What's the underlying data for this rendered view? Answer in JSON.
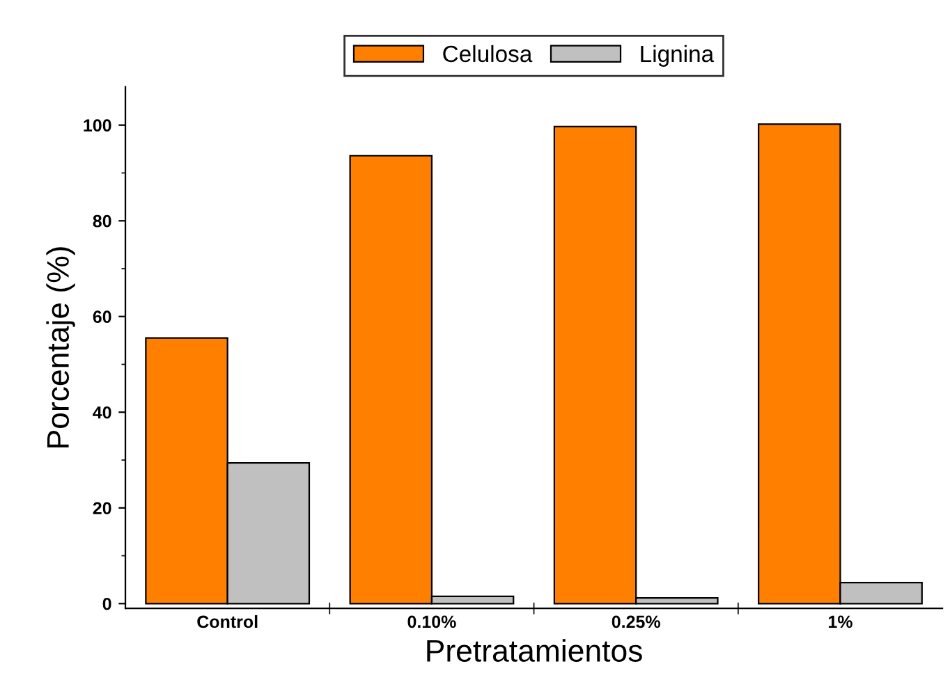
{
  "chart_data": {
    "type": "bar",
    "xlabel": "Pretratamientos",
    "ylabel": "Porcentaje (%)",
    "categories": [
      "Control",
      "0.10%",
      "0.25%",
      "1%"
    ],
    "series": [
      {
        "name": "Celulosa",
        "color": "#ff7f00",
        "values": [
          55.5,
          93.6,
          99.7,
          100.2
        ]
      },
      {
        "name": "Lignina",
        "color": "#c0c0c0",
        "values": [
          29.4,
          1.5,
          1.2,
          4.4
        ]
      }
    ],
    "ylim": [
      -1,
      108
    ],
    "yticks": [
      0,
      20,
      40,
      60,
      80,
      100
    ],
    "grid": false,
    "legend": "top"
  }
}
